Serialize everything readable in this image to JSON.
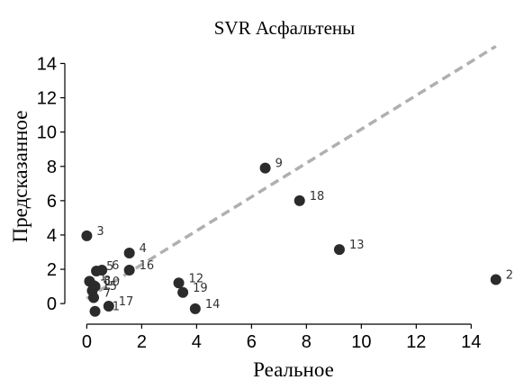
{
  "chart_data": {
    "type": "scatter",
    "title": "SVR Асфальтены",
    "xlabel": "Реальное",
    "ylabel": "Предсказанное",
    "xlim": [
      -0.8,
      15.4
    ],
    "ylim": [
      -1.2,
      15.6
    ],
    "xticks": [
      0,
      2,
      4,
      6,
      8,
      10,
      12,
      14
    ],
    "yticks": [
      0,
      2,
      4,
      6,
      8,
      10,
      12,
      14
    ],
    "grid": false,
    "reference_line": {
      "style": "dashed",
      "color": "#b0b0b0",
      "from": [
        0,
        0.3
      ],
      "to": [
        14.9,
        15
      ]
    },
    "points": [
      {
        "label": "1",
        "x": 0.1,
        "y": 1.3
      },
      {
        "label": "2",
        "x": 14.9,
        "y": 1.4
      },
      {
        "label": "3",
        "x": 0.0,
        "y": 3.95
      },
      {
        "label": "4",
        "x": 1.55,
        "y": 2.95
      },
      {
        "label": "5",
        "x": 0.35,
        "y": 1.9
      },
      {
        "label": "6",
        "x": 0.55,
        "y": 1.95
      },
      {
        "label": "7",
        "x": 0.25,
        "y": 0.35
      },
      {
        "label": "8",
        "x": 0.25,
        "y": 1.05
      },
      {
        "label": "9",
        "x": 6.5,
        "y": 7.9
      },
      {
        "label": "10",
        "x": 0.3,
        "y": 1.0
      },
      {
        "label": "11",
        "x": 0.3,
        "y": -0.45
      },
      {
        "label": "12",
        "x": 3.35,
        "y": 1.2
      },
      {
        "label": "13",
        "x": 9.2,
        "y": 3.15
      },
      {
        "label": "14",
        "x": 3.95,
        "y": -0.3
      },
      {
        "label": "15",
        "x": 0.2,
        "y": 0.75
      },
      {
        "label": "16",
        "x": 1.55,
        "y": 1.95
      },
      {
        "label": "17",
        "x": 0.8,
        "y": -0.15
      },
      {
        "label": "18",
        "x": 7.75,
        "y": 6.0
      },
      {
        "label": "19",
        "x": 3.5,
        "y": 0.65
      }
    ]
  }
}
